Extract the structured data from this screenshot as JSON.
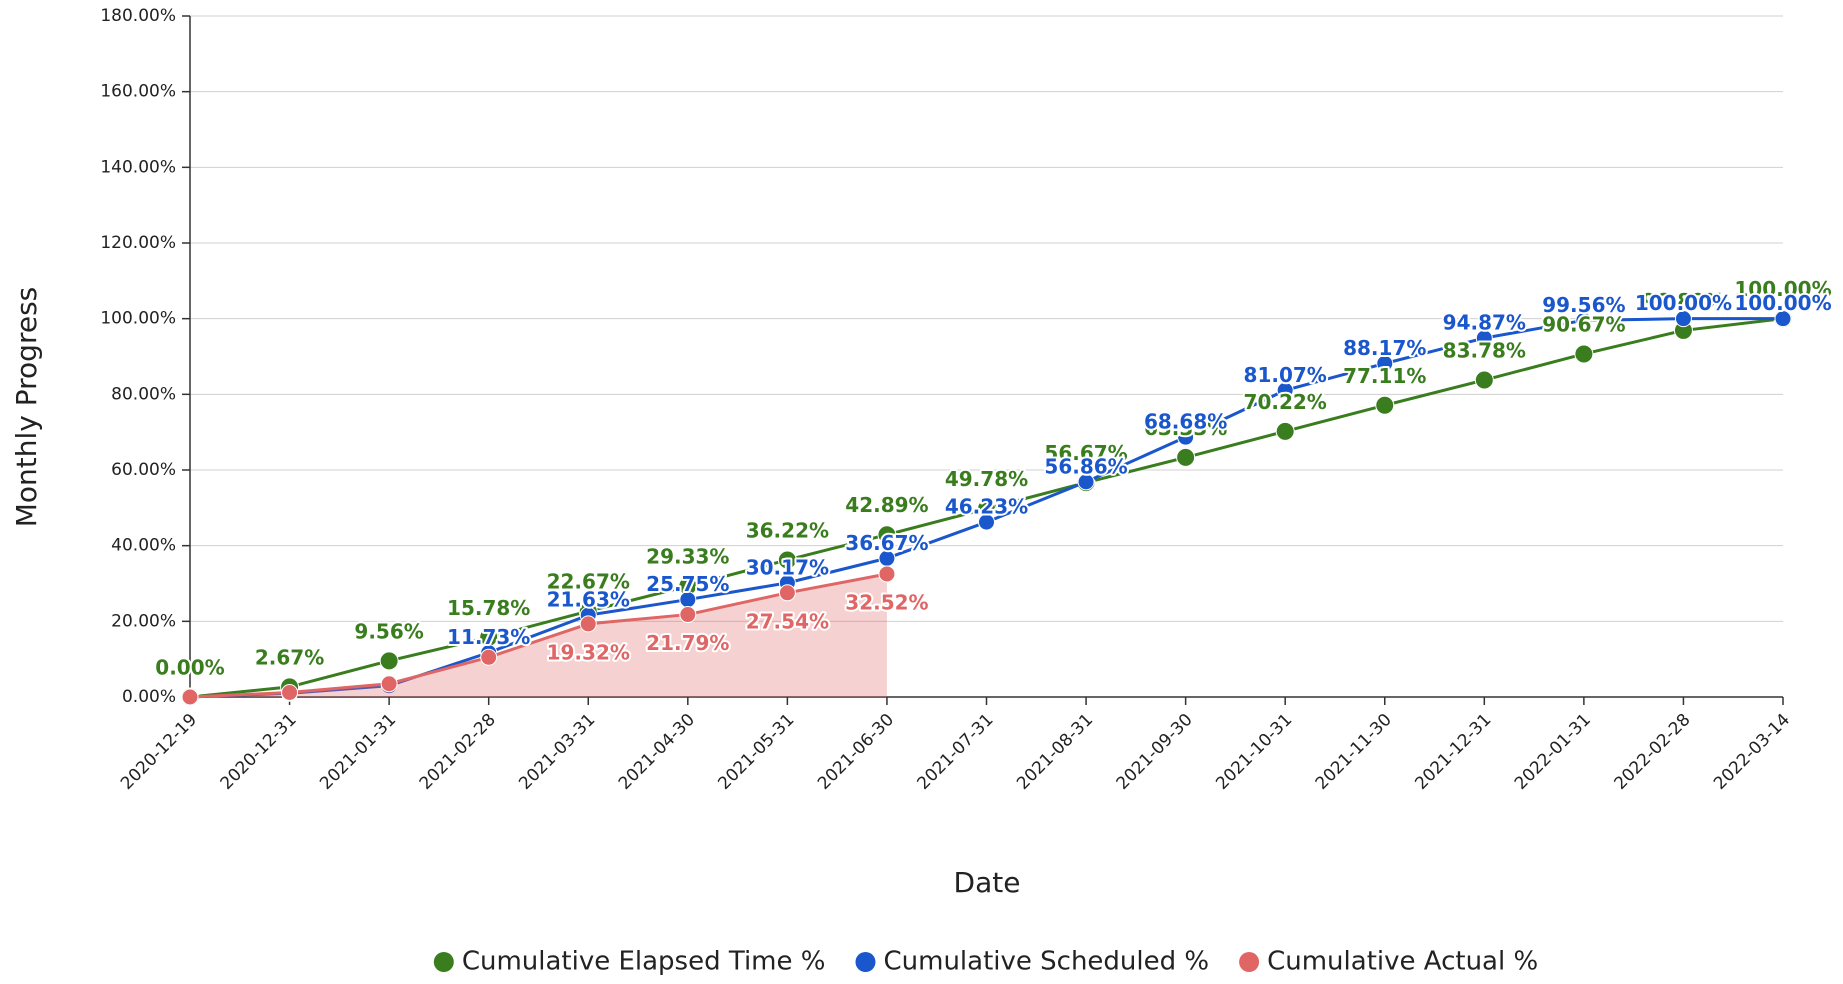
{
  "chart_data": {
    "type": "line",
    "x_label": "Date",
    "y_label": "Monthly Progress",
    "categories": [
      "2020-12-19",
      "2020-12-31",
      "2021-01-31",
      "2021-02-28",
      "2021-03-31",
      "2021-04-30",
      "2021-05-31",
      "2021-06-30",
      "2021-07-31",
      "2021-08-31",
      "2021-09-30",
      "2021-10-31",
      "2021-11-30",
      "2021-12-31",
      "2022-01-31",
      "2022-02-28",
      "2022-03-14"
    ],
    "series": [
      {
        "name": "Cumulative Elapsed Time %",
        "color": "#3a7d1e",
        "values": [
          0,
          2.67,
          9.56,
          15.78,
          22.67,
          29.33,
          36.22,
          42.89,
          49.78,
          56.67,
          63.33,
          70.22,
          77.11,
          83.78,
          90.67,
          96.89,
          100
        ],
        "value_labels": [
          "0.00%",
          "2.67%",
          "9.56%",
          "15.78%",
          "22.67%",
          "29.33%",
          "36.22%",
          "42.89%",
          "49.78%",
          "56.67%",
          "63.33%",
          "70.22%",
          "77.11%",
          "83.78%",
          "90.67%",
          "96.89%",
          "100.00%"
        ]
      },
      {
        "name": "Cumulative Scheduled %",
        "color": "#1a56cc",
        "values": [
          0,
          1,
          3,
          11.73,
          21.63,
          25.75,
          30.17,
          36.67,
          46.23,
          56.86,
          68.68,
          81.07,
          88.17,
          94.87,
          99.56,
          100,
          100
        ],
        "value_labels": [
          null,
          null,
          null,
          "11.73%",
          "21.63%",
          "25.75%",
          "30.17%",
          "36.67%",
          "46.23%",
          "56.86%",
          "68.68%",
          "81.07%",
          "88.17%",
          "94.87%",
          "99.56%",
          "100.00%",
          "100.00%"
        ]
      },
      {
        "name": "Cumulative Actual %",
        "color": "#e06666",
        "area": true,
        "values": [
          0,
          1.2,
          3.5,
          10.5,
          19.32,
          21.79,
          27.54,
          32.52,
          null,
          null,
          null,
          null,
          null,
          null,
          null,
          null,
          null
        ],
        "value_labels": [
          null,
          null,
          null,
          null,
          "19.32%",
          "21.79%",
          "27.54%",
          "32.52%",
          null,
          null,
          null,
          null,
          null,
          null,
          null,
          null,
          null
        ]
      }
    ],
    "ylim": [
      0,
      180
    ],
    "yticks": [
      {
        "value": 0,
        "label": "0.00%"
      },
      {
        "value": 20,
        "label": "20.00%"
      },
      {
        "value": 40,
        "label": "40.00%"
      },
      {
        "value": 60,
        "label": "60.00%"
      },
      {
        "value": 80,
        "label": "80.00%"
      },
      {
        "value": 100,
        "label": "100.00%"
      },
      {
        "value": 120,
        "label": "120.00%"
      },
      {
        "value": 140,
        "label": "140.00%"
      },
      {
        "value": 160,
        "label": "160.00%"
      },
      {
        "value": 180,
        "label": "180.00%"
      }
    ],
    "grid": true,
    "legend": "bottom"
  }
}
